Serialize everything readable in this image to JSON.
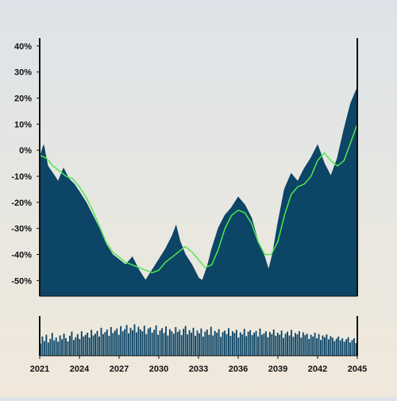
{
  "chart_data": {
    "type": "area",
    "title": "",
    "xlabel": "",
    "ylabel": "",
    "x_range": [
      2021,
      2045
    ],
    "ylim": [
      -56,
      43
    ],
    "y_tick_values": [
      40,
      30,
      20,
      10,
      0,
      -10,
      -20,
      -30,
      -40,
      -50
    ],
    "y_tick_labels": [
      "40%",
      "30%",
      "20%",
      "10%",
      "0%",
      "-10%",
      "-20%",
      "-30%",
      "-40%",
      "-50%"
    ],
    "x_tick_values": [
      2021,
      2024,
      2027,
      2030,
      2033,
      2036,
      2039,
      2042,
      2045
    ],
    "x_tick_labels": [
      "2021",
      "2024",
      "2027",
      "2030",
      "2033",
      "2036",
      "2039",
      "2042",
      "2045"
    ],
    "grid": false,
    "legend": false,
    "colors": {
      "area": "#0c4566",
      "line": "#4fe84f",
      "axis": "#111111"
    },
    "series": [
      {
        "type": "area",
        "points": [
          [
            2021.0,
            -3
          ],
          [
            2021.3,
            2
          ],
          [
            2021.6,
            -6
          ],
          [
            2022.0,
            -9
          ],
          [
            2022.4,
            -12
          ],
          [
            2022.8,
            -7
          ],
          [
            2023.2,
            -11
          ],
          [
            2023.6,
            -13
          ],
          [
            2024.0,
            -16
          ],
          [
            2024.5,
            -20
          ],
          [
            2025.0,
            -25
          ],
          [
            2025.5,
            -30
          ],
          [
            2026.0,
            -36
          ],
          [
            2026.5,
            -40
          ],
          [
            2027.0,
            -42
          ],
          [
            2027.5,
            -44
          ],
          [
            2028.0,
            -41
          ],
          [
            2028.5,
            -46
          ],
          [
            2029.0,
            -50
          ],
          [
            2029.5,
            -46
          ],
          [
            2030.0,
            -42
          ],
          [
            2030.5,
            -38
          ],
          [
            2031.0,
            -33
          ],
          [
            2031.3,
            -29
          ],
          [
            2031.6,
            -35
          ],
          [
            2032.0,
            -40
          ],
          [
            2032.5,
            -44
          ],
          [
            2033.0,
            -49
          ],
          [
            2033.3,
            -50
          ],
          [
            2033.7,
            -44
          ],
          [
            2034.0,
            -38
          ],
          [
            2034.5,
            -30
          ],
          [
            2035.0,
            -25
          ],
          [
            2035.5,
            -22
          ],
          [
            2036.0,
            -18
          ],
          [
            2036.5,
            -21
          ],
          [
            2037.0,
            -26
          ],
          [
            2037.5,
            -35
          ],
          [
            2038.0,
            -41
          ],
          [
            2038.3,
            -46
          ],
          [
            2038.6,
            -40
          ],
          [
            2039.0,
            -28
          ],
          [
            2039.5,
            -15
          ],
          [
            2040.0,
            -9
          ],
          [
            2040.5,
            -12
          ],
          [
            2041.0,
            -7
          ],
          [
            2041.5,
            -3
          ],
          [
            2042.0,
            2
          ],
          [
            2042.5,
            -5
          ],
          [
            2043.0,
            -10
          ],
          [
            2043.5,
            -3
          ],
          [
            2044.0,
            8
          ],
          [
            2044.5,
            18
          ],
          [
            2045.0,
            24
          ]
        ]
      },
      {
        "type": "line",
        "points": [
          [
            2021.0,
            -2
          ],
          [
            2021.5,
            -3
          ],
          [
            2022.0,
            -6
          ],
          [
            2022.5,
            -8
          ],
          [
            2023.0,
            -10
          ],
          [
            2023.5,
            -11
          ],
          [
            2024.0,
            -14
          ],
          [
            2024.5,
            -18
          ],
          [
            2025.0,
            -23
          ],
          [
            2025.5,
            -29
          ],
          [
            2026.0,
            -35
          ],
          [
            2026.5,
            -39
          ],
          [
            2027.0,
            -41
          ],
          [
            2027.5,
            -43
          ],
          [
            2028.0,
            -44
          ],
          [
            2028.5,
            -45
          ],
          [
            2029.0,
            -46
          ],
          [
            2029.5,
            -47
          ],
          [
            2030.0,
            -46
          ],
          [
            2030.5,
            -43
          ],
          [
            2031.0,
            -41
          ],
          [
            2031.5,
            -39
          ],
          [
            2032.0,
            -37
          ],
          [
            2032.5,
            -39
          ],
          [
            2033.0,
            -42
          ],
          [
            2033.5,
            -45
          ],
          [
            2034.0,
            -44
          ],
          [
            2034.5,
            -38
          ],
          [
            2035.0,
            -30
          ],
          [
            2035.5,
            -25
          ],
          [
            2036.0,
            -23
          ],
          [
            2036.5,
            -24
          ],
          [
            2037.0,
            -28
          ],
          [
            2037.5,
            -35
          ],
          [
            2038.0,
            -40
          ],
          [
            2038.5,
            -40
          ],
          [
            2039.0,
            -35
          ],
          [
            2039.5,
            -25
          ],
          [
            2040.0,
            -17
          ],
          [
            2040.5,
            -14
          ],
          [
            2041.0,
            -13
          ],
          [
            2041.5,
            -10
          ],
          [
            2042.0,
            -4
          ],
          [
            2042.5,
            -1
          ],
          [
            2043.0,
            -4
          ],
          [
            2043.5,
            -6
          ],
          [
            2044.0,
            -4
          ],
          [
            2044.5,
            3
          ],
          [
            2045.0,
            10
          ]
        ]
      }
    ],
    "volume": {
      "x_range": [
        2021,
        2045
      ],
      "max": 1.0,
      "values": [
        0.35,
        0.55,
        0.42,
        0.6,
        0.38,
        0.48,
        0.65,
        0.44,
        0.52,
        0.4,
        0.58,
        0.47,
        0.63,
        0.5,
        0.41,
        0.57,
        0.69,
        0.45,
        0.53,
        0.62,
        0.48,
        0.7,
        0.55,
        0.6,
        0.66,
        0.52,
        0.74,
        0.58,
        0.63,
        0.71,
        0.55,
        0.8,
        0.62,
        0.68,
        0.75,
        0.57,
        0.82,
        0.65,
        0.72,
        0.78,
        0.6,
        0.85,
        0.7,
        0.76,
        0.88,
        0.64,
        0.8,
        0.73,
        0.9,
        0.67,
        0.83,
        0.75,
        0.7,
        0.86,
        0.62,
        0.78,
        0.81,
        0.66,
        0.74,
        0.87,
        0.6,
        0.72,
        0.79,
        0.65,
        0.84,
        0.58,
        0.76,
        0.7,
        0.63,
        0.82,
        0.68,
        0.74,
        0.59,
        0.77,
        0.85,
        0.61,
        0.73,
        0.66,
        0.8,
        0.57,
        0.72,
        0.64,
        0.78,
        0.55,
        0.69,
        0.75,
        0.6,
        0.83,
        0.58,
        0.71,
        0.66,
        0.76,
        0.54,
        0.68,
        0.72,
        0.62,
        0.79,
        0.57,
        0.7,
        0.65,
        0.74,
        0.52,
        0.67,
        0.61,
        0.77,
        0.56,
        0.69,
        0.73,
        0.59,
        0.66,
        0.71,
        0.55,
        0.78,
        0.6,
        0.64,
        0.7,
        0.53,
        0.68,
        0.62,
        0.75,
        0.57,
        0.66,
        0.6,
        0.72,
        0.51,
        0.63,
        0.69,
        0.58,
        0.74,
        0.54,
        0.65,
        0.61,
        0.7,
        0.52,
        0.67,
        0.59,
        0.63,
        0.48,
        0.6,
        0.55,
        0.66,
        0.5,
        0.62,
        0.45,
        0.58,
        0.53,
        0.61,
        0.47,
        0.56,
        0.52,
        0.42,
        0.49,
        0.55,
        0.44,
        0.5,
        0.4,
        0.47,
        0.53,
        0.38,
        0.45,
        0.5,
        0.36
      ]
    }
  }
}
